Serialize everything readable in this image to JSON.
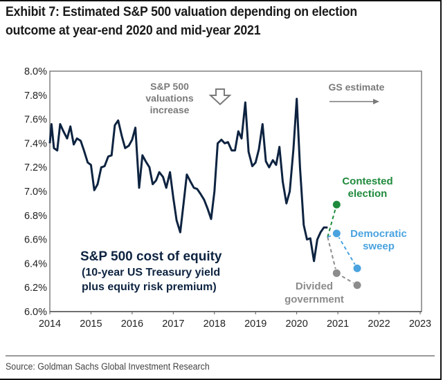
{
  "title": "Exhibit 7: Estimated S&P 500 valuation depending on election outcome at year-end 2020 and mid-year 2021",
  "source": "Source: Goldman Sachs Global Investment Research",
  "colors": {
    "line": "#0d2340",
    "contested": "#1f8a3c",
    "democratic": "#4aa3df",
    "divided": "#8c8c8c",
    "axis": "#7f7f7f",
    "annotation": "#7a7a7a"
  },
  "chart_data": {
    "type": "line",
    "title": "Exhibit 7: Estimated S&P 500 valuation depending on election outcome at year-end 2020 and mid-year 2021",
    "xlabel": "",
    "ylabel": "",
    "xlim": [
      2014,
      2023
    ],
    "ylim": [
      6.0,
      8.0
    ],
    "x_ticks": [
      "2014",
      "2015",
      "2016",
      "2017",
      "2018",
      "2019",
      "2020",
      "2021",
      "2022",
      "2023"
    ],
    "y_ticks": [
      "6.0%",
      "6.2%",
      "6.4%",
      "6.6%",
      "6.8%",
      "7.0%",
      "7.2%",
      "7.4%",
      "7.6%",
      "7.8%",
      "8.0%"
    ],
    "grid": false,
    "annotations": {
      "valuations": [
        "S&P 500",
        "valuations",
        "increase"
      ],
      "gs_estimate": "GS estimate",
      "series_label": [
        "S&P 500 cost of equity",
        "(10-year US Treasury yield",
        "plus equity risk premium)"
      ]
    },
    "series": [
      {
        "name": "S&P 500 cost of equity",
        "x": [
          2014.0,
          2014.04,
          2014.1,
          2014.18,
          2014.25,
          2014.33,
          2014.42,
          2014.5,
          2014.58,
          2014.66,
          2014.75,
          2014.83,
          2014.92,
          2015.0,
          2015.08,
          2015.16,
          2015.25,
          2015.33,
          2015.42,
          2015.5,
          2015.58,
          2015.66,
          2015.75,
          2015.83,
          2015.92,
          2016.0,
          2016.08,
          2016.17,
          2016.25,
          2016.33,
          2016.42,
          2016.5,
          2016.58,
          2016.66,
          2016.75,
          2016.83,
          2016.92,
          2017.0,
          2017.08,
          2017.17,
          2017.25,
          2017.33,
          2017.42,
          2017.5,
          2017.58,
          2017.66,
          2017.75,
          2017.83,
          2017.92,
          2018.0,
          2018.08,
          2018.17,
          2018.25,
          2018.33,
          2018.42,
          2018.5,
          2018.58,
          2018.66,
          2018.75,
          2018.83,
          2018.92,
          2019.0,
          2019.08,
          2019.17,
          2019.25,
          2019.33,
          2019.42,
          2019.5,
          2019.58,
          2019.66,
          2019.75,
          2019.83,
          2019.92,
          2020.0,
          2020.08,
          2020.17,
          2020.25,
          2020.33,
          2020.42,
          2020.5,
          2020.58,
          2020.66,
          2020.75
        ],
        "values": [
          7.4,
          7.56,
          7.36,
          7.34,
          7.56,
          7.5,
          7.44,
          7.54,
          7.39,
          7.44,
          7.42,
          7.34,
          7.24,
          7.22,
          7.01,
          7.06,
          7.2,
          7.21,
          7.29,
          7.3,
          7.55,
          7.59,
          7.46,
          7.36,
          7.38,
          7.43,
          7.53,
          7.03,
          7.3,
          7.25,
          7.2,
          7.06,
          7.09,
          7.16,
          7.12,
          7.03,
          7.16,
          6.95,
          6.76,
          6.66,
          6.9,
          7.14,
          7.08,
          7.03,
          7.02,
          6.98,
          6.93,
          6.86,
          6.77,
          7.0,
          7.4,
          7.43,
          7.4,
          7.41,
          7.34,
          7.34,
          7.5,
          7.44,
          7.74,
          7.33,
          7.21,
          7.24,
          7.35,
          7.56,
          7.25,
          7.2,
          7.26,
          7.22,
          7.37,
          7.08,
          6.9,
          7.0,
          7.35,
          7.77,
          7.2,
          6.72,
          6.6,
          6.61,
          6.42,
          6.6,
          6.66,
          6.7,
          6.7
        ]
      },
      {
        "name": "Contested election",
        "x": [
          2020.75,
          2020.97
        ],
        "values": [
          6.62,
          6.89
        ]
      },
      {
        "name": "Democratic sweep",
        "x": [
          2020.75,
          2020.97,
          2021.47
        ],
        "values": [
          6.62,
          6.65,
          6.36
        ]
      },
      {
        "name": "Divided government",
        "x": [
          2020.75,
          2020.97,
          2021.47
        ],
        "values": [
          6.62,
          6.32,
          6.22
        ]
      }
    ],
    "scenario_labels": {
      "contested": [
        "Contested",
        "election"
      ],
      "democratic": [
        "Democratic",
        "sweep"
      ],
      "divided": [
        "Divided",
        "government"
      ]
    }
  }
}
